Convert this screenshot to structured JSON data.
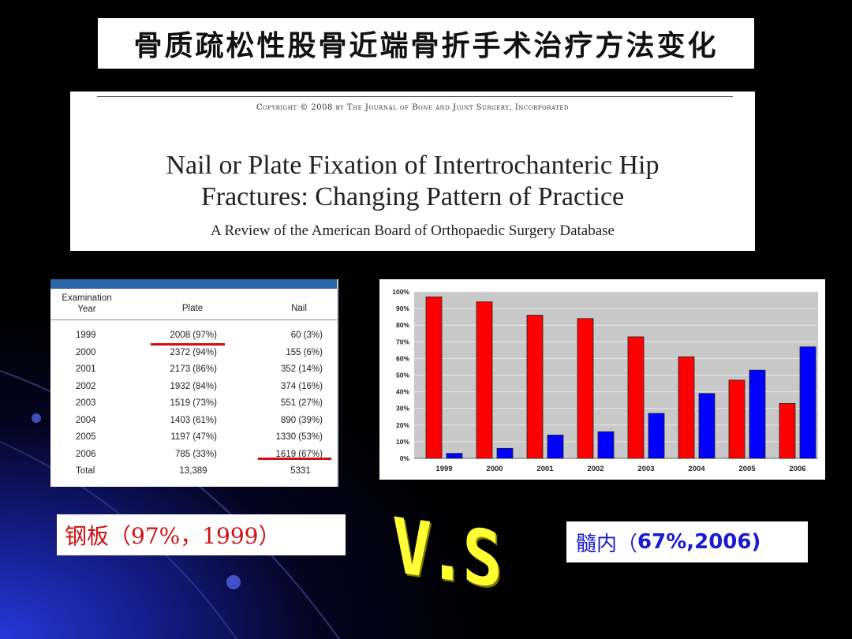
{
  "slide": {
    "title": "骨质疏松性股骨近端骨折手术治疗方法变化"
  },
  "paper": {
    "copyright": "Copyright © 2008 by The Journal of Bone and Joint Surgery, Incorporated",
    "title_line1": "Nail or Plate Fixation of Intertrochanteric Hip",
    "title_line2": "Fractures: Changing Pattern of Practice",
    "subtitle": "A Review of the American Board of Orthopaedic Surgery Database"
  },
  "table": {
    "header_year_line1": "Examination",
    "header_year_line2": "Year",
    "header_plate": "Plate",
    "header_nail": "Nail",
    "rows": [
      {
        "year": "1999",
        "plate": "2008 (97%)",
        "nail": "60 (3%)"
      },
      {
        "year": "2000",
        "plate": "2372 (94%)",
        "nail": "155 (6%)"
      },
      {
        "year": "2001",
        "plate": "2173 (86%)",
        "nail": "352 (14%)"
      },
      {
        "year": "2002",
        "plate": "1932 (84%)",
        "nail": "374 (16%)"
      },
      {
        "year": "2003",
        "plate": "1519 (73%)",
        "nail": "551 (27%)"
      },
      {
        "year": "2004",
        "plate": "1403 (61%)",
        "nail": "890 (39%)"
      },
      {
        "year": "2005",
        "plate": "1197 (47%)",
        "nail": "1330 (53%)"
      },
      {
        "year": "2006",
        "plate": "785 (33%)",
        "nail": "1619 (67%)"
      }
    ],
    "total": {
      "label": "Total",
      "plate": "13,389",
      "nail": "5331"
    },
    "underline_color": "#d01010"
  },
  "chart_data": {
    "type": "bar",
    "title": "",
    "xlabel": "",
    "ylabel": "",
    "categories": [
      "1999",
      "2000",
      "2001",
      "2002",
      "2003",
      "2004",
      "2005",
      "2006"
    ],
    "series": [
      {
        "values": [
          97,
          94,
          86,
          84,
          73,
          61,
          47,
          33
        ],
        "color": "#ff0000"
      },
      {
        "values": [
          3,
          6,
          14,
          16,
          27,
          39,
          53,
          67
        ],
        "color": "#0000ff"
      }
    ],
    "ylim": [
      0,
      100
    ],
    "yticks": [
      "0%",
      "10%",
      "20%",
      "30%",
      "40%",
      "50%",
      "60%",
      "70%",
      "80%",
      "90%",
      "100%"
    ],
    "grid": true,
    "legend": "none"
  },
  "labels": {
    "left": "钢板（97%，1999）",
    "right_cn": "髓内（",
    "right_rest": "67%,2006)",
    "vs": "V.S"
  },
  "colors": {
    "left_label": "#d01010",
    "right_label": "#1a1ad0",
    "vs": "#ffff33"
  }
}
